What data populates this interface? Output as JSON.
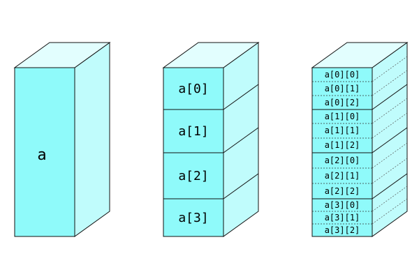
{
  "labels": {
    "scalar": "a",
    "array": [
      "a[0]",
      "a[1]",
      "a[2]",
      "a[3]"
    ],
    "matrix": [
      [
        "a[0][0]",
        "a[0][1]",
        "a[0][2]"
      ],
      [
        "a[1][0]",
        "a[1][1]",
        "a[1][2]"
      ],
      [
        "a[2][0]",
        "a[2][1]",
        "a[2][2]"
      ],
      [
        "a[3][0]",
        "a[3][1]",
        "a[3][2]"
      ]
    ]
  },
  "colors": {
    "front": "#8ffafa",
    "side": "#c0fcfc",
    "top": "#e2fefe",
    "outline": "#111111"
  }
}
